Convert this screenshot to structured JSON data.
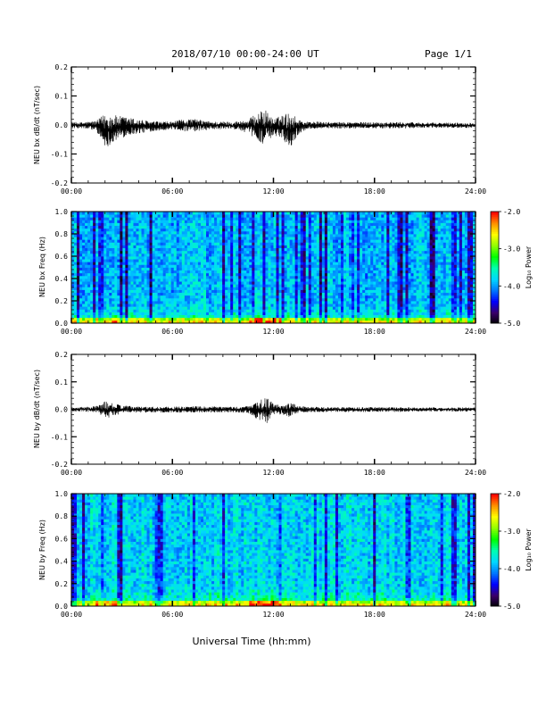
{
  "header": {
    "title": "2018/07/10  00:00-24:00 UT",
    "page": "Page 1/1"
  },
  "footer": {
    "xlabel": "Universal Time (hh:mm)"
  },
  "colorbar": {
    "label": "Log₁₀ Power",
    "ticks": [
      "-2.0",
      "-3.0",
      "-4.0",
      "-5.0"
    ],
    "tick_values": [
      -2,
      -3,
      -4,
      -5
    ],
    "range": [
      -5,
      -2
    ],
    "colors": [
      "#000000",
      "#3a006a",
      "#0000ff",
      "#0078ff",
      "#00d8ff",
      "#00ffb0",
      "#00ff00",
      "#90ff00",
      "#ffff00",
      "#ff9000",
      "#ff0000"
    ]
  },
  "chart_data": [
    {
      "type": "line",
      "ylabel": "NEU bx dB/dt (nT/sec)",
      "ylim": [
        -0.2,
        0.2
      ],
      "yticks": [
        "0.2",
        "0.1",
        "0.0",
        "-0.1",
        "-0.2"
      ],
      "ytick_values": [
        0.2,
        0.1,
        0.0,
        -0.1,
        -0.2
      ],
      "xlim": [
        0,
        24
      ],
      "xticks": [
        "00:00",
        "06:00",
        "12:00",
        "18:00",
        "24:00"
      ],
      "xtick_values": [
        0,
        6,
        12,
        18,
        24
      ],
      "series": [
        {
          "envelope_x": [
            0,
            0.5,
            1.0,
            1.5,
            2.0,
            2.5,
            3.0,
            3.5,
            4.0,
            4.5,
            5.0,
            5.5,
            6.0,
            6.5,
            7.0,
            7.5,
            8.0,
            8.5,
            9.0,
            9.5,
            10.0,
            10.5,
            11.0,
            11.5,
            12.0,
            12.5,
            13.0,
            13.5,
            14.0,
            14.5,
            15.0,
            15.5,
            16.0,
            16.5,
            17.0,
            17.5,
            18.0,
            18.5,
            19.0,
            19.5,
            20.0,
            20.5,
            21.0,
            21.5,
            22.0,
            22.5,
            23.0,
            23.5,
            24.0
          ],
          "envelope_max": [
            0.01,
            0.01,
            0.012,
            0.015,
            0.04,
            0.035,
            0.03,
            0.025,
            0.02,
            0.015,
            0.012,
            0.012,
            0.012,
            0.018,
            0.022,
            0.02,
            0.014,
            0.012,
            0.012,
            0.012,
            0.014,
            0.02,
            0.04,
            0.055,
            0.02,
            0.035,
            0.045,
            0.02,
            0.012,
            0.012,
            0.01,
            0.01,
            0.01,
            0.01,
            0.01,
            0.01,
            0.01,
            0.01,
            0.01,
            0.01,
            0.01,
            0.009,
            0.008,
            0.008,
            0.008,
            0.008,
            0.008,
            0.008,
            0.008
          ],
          "envelope_min": [
            -0.012,
            -0.012,
            -0.015,
            -0.02,
            -0.08,
            -0.06,
            -0.045,
            -0.035,
            -0.03,
            -0.025,
            -0.02,
            -0.018,
            -0.015,
            -0.02,
            -0.025,
            -0.022,
            -0.018,
            -0.015,
            -0.015,
            -0.015,
            -0.018,
            -0.03,
            -0.05,
            -0.07,
            -0.035,
            -0.045,
            -0.08,
            -0.03,
            -0.015,
            -0.012,
            -0.012,
            -0.012,
            -0.012,
            -0.012,
            -0.012,
            -0.012,
            -0.012,
            -0.012,
            -0.012,
            -0.012,
            -0.012,
            -0.01,
            -0.01,
            -0.01,
            -0.01,
            -0.01,
            -0.01,
            -0.01,
            -0.01
          ]
        }
      ]
    },
    {
      "type": "heatmap",
      "ylabel": "NEU bx Freq (Hz)",
      "ylim": [
        0.0,
        1.0
      ],
      "yticks": [
        "1.0",
        "0.8",
        "0.6",
        "0.4",
        "0.2",
        "0.0"
      ],
      "ytick_values": [
        1.0,
        0.8,
        0.6,
        0.4,
        0.2,
        0.0
      ],
      "xlim": [
        0,
        24
      ],
      "xticks": [
        "00:00",
        "06:00",
        "12:00",
        "18:00",
        "24:00"
      ],
      "xtick_values": [
        0,
        6,
        12,
        18,
        24
      ],
      "zlim": [
        -5,
        -2
      ],
      "z_typical_high_freq": -3.9,
      "z_typical_low_freq": -3.0
    },
    {
      "type": "line",
      "ylabel": "NEU by dB/dt (nT/sec)",
      "ylim": [
        -0.2,
        0.2
      ],
      "yticks": [
        "0.2",
        "0.1",
        "0.0",
        "-0.1",
        "-0.2"
      ],
      "ytick_values": [
        0.2,
        0.1,
        0.0,
        -0.1,
        -0.2
      ],
      "xlim": [
        0,
        24
      ],
      "xticks": [
        "00:00",
        "06:00",
        "12:00",
        "18:00",
        "24:00"
      ],
      "xtick_values": [
        0,
        6,
        12,
        18,
        24
      ],
      "series": [
        {
          "envelope_x": [
            0,
            0.5,
            1.0,
            1.5,
            2.0,
            2.5,
            3.0,
            3.5,
            4.0,
            4.5,
            5.0,
            5.5,
            6.0,
            6.5,
            7.0,
            7.5,
            8.0,
            8.5,
            9.0,
            9.5,
            10.0,
            10.5,
            11.0,
            11.5,
            12.0,
            12.5,
            13.0,
            13.5,
            14.0,
            14.5,
            15.0,
            15.5,
            16.0,
            16.5,
            17.0,
            17.5,
            18.0,
            18.5,
            19.0,
            19.5,
            20.0,
            20.5,
            21.0,
            21.5,
            22.0,
            22.5,
            23.0,
            23.5,
            24.0
          ],
          "envelope_max": [
            0.008,
            0.008,
            0.01,
            0.012,
            0.03,
            0.02,
            0.015,
            0.012,
            0.01,
            0.01,
            0.01,
            0.01,
            0.01,
            0.01,
            0.012,
            0.012,
            0.01,
            0.01,
            0.01,
            0.01,
            0.01,
            0.012,
            0.025,
            0.05,
            0.02,
            0.018,
            0.025,
            0.012,
            0.01,
            0.01,
            0.008,
            0.008,
            0.008,
            0.008,
            0.008,
            0.008,
            0.008,
            0.008,
            0.008,
            0.008,
            0.008,
            0.007,
            0.007,
            0.007,
            0.007,
            0.007,
            0.007,
            0.007,
            0.007
          ],
          "envelope_min": [
            -0.008,
            -0.008,
            -0.01,
            -0.012,
            -0.035,
            -0.025,
            -0.015,
            -0.012,
            -0.012,
            -0.012,
            -0.012,
            -0.012,
            -0.012,
            -0.012,
            -0.012,
            -0.012,
            -0.012,
            -0.012,
            -0.012,
            -0.012,
            -0.012,
            -0.015,
            -0.035,
            -0.06,
            -0.02,
            -0.02,
            -0.03,
            -0.012,
            -0.01,
            -0.01,
            -0.01,
            -0.01,
            -0.01,
            -0.01,
            -0.01,
            -0.01,
            -0.01,
            -0.01,
            -0.01,
            -0.01,
            -0.01,
            -0.008,
            -0.008,
            -0.008,
            -0.008,
            -0.008,
            -0.008,
            -0.008,
            -0.008
          ]
        }
      ]
    },
    {
      "type": "heatmap",
      "ylabel": "NEU by Freq (Hz)",
      "ylim": [
        0.0,
        1.0
      ],
      "yticks": [
        "1.0",
        "0.8",
        "0.6",
        "0.4",
        "0.2",
        "0.0"
      ],
      "ytick_values": [
        1.0,
        0.8,
        0.6,
        0.4,
        0.2,
        0.0
      ],
      "xlim": [
        0,
        24
      ],
      "xticks": [
        "00:00",
        "06:00",
        "12:00",
        "18:00",
        "24:00"
      ],
      "xtick_values": [
        0,
        6,
        12,
        18,
        24
      ],
      "zlim": [
        -5,
        -2
      ],
      "z_typical_high_freq": -3.8,
      "z_typical_low_freq": -3.0
    }
  ]
}
